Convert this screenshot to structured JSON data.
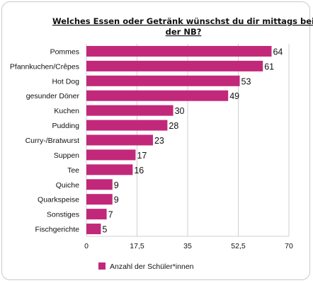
{
  "chart_data": {
    "type": "bar",
    "orientation": "horizontal",
    "title": "Welches Essen oder Getränk wünschst du dir mittags bei der NB?",
    "title_lines": [
      "Welches Essen oder Getränk wünschst du dir mittags bei",
      "der NB?"
    ],
    "categories": [
      "Pommes",
      "Pfannkuchen/Crêpes",
      "Hot Dog",
      "gesunder Döner",
      "Kuchen",
      "Pudding",
      "Curry-/Bratwurst",
      "Suppen",
      "Tee",
      "Quiche",
      "Quarkspeise",
      "Sonstiges",
      "Fischgerichte"
    ],
    "series": [
      {
        "name": "Anzahl der Schüler*innen",
        "values": [
          64,
          61,
          53,
          49,
          30,
          28,
          23,
          17,
          16,
          9,
          9,
          7,
          5
        ],
        "color": "#c2287a"
      }
    ],
    "xlim": [
      0,
      70
    ],
    "xticks": [
      0,
      17.5,
      35,
      52.5,
      70
    ],
    "xtick_labels": [
      "0",
      "17,5",
      "35",
      "52,5",
      "70"
    ],
    "grid": true,
    "legend": "bottom-left"
  }
}
